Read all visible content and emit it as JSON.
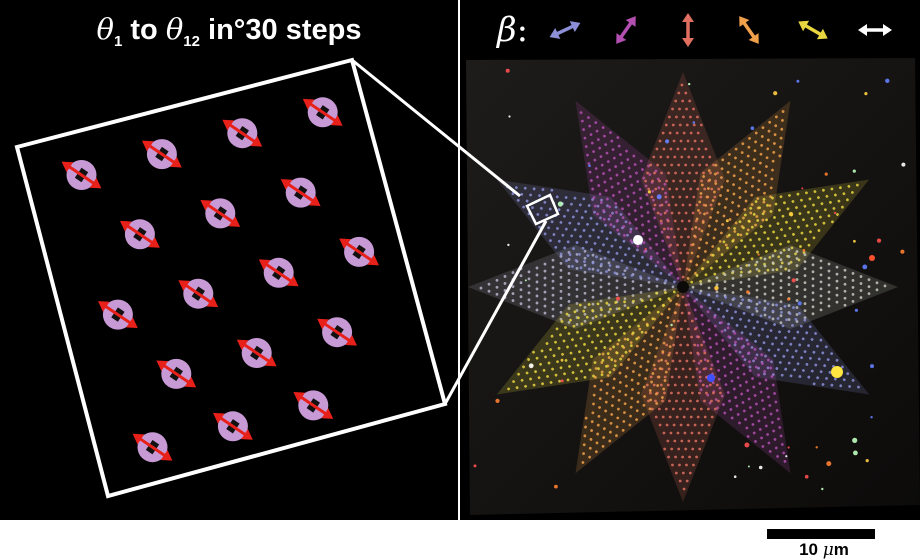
{
  "title": {
    "symbol": "θ",
    "start_sub": "1",
    "to_word": "to",
    "end_sub": "12",
    "tail": "in°30 steps"
  },
  "legend": {
    "symbol": "β",
    "colon": ":",
    "arrows": [
      {
        "icon": "double-arrow-icon",
        "color": "#8c8fd8",
        "angle_deg": -25
      },
      {
        "icon": "double-arrow-icon",
        "color": "#b24fb0",
        "angle_deg": -55
      },
      {
        "icon": "double-arrow-icon",
        "color": "#e06f60",
        "angle_deg": -90
      },
      {
        "icon": "double-arrow-icon",
        "color": "#f0a04a",
        "angle_deg": -125
      },
      {
        "icon": "double-arrow-icon",
        "color": "#e8d640",
        "angle_deg": -150
      },
      {
        "icon": "double-arrow-icon",
        "color": "#ffffff",
        "angle_deg": -180
      }
    ]
  },
  "inset": {
    "particle_color": "#c79ad6",
    "arrow_color": "#e8201a",
    "particle_count": 17
  },
  "scale_bar": {
    "value": "10",
    "unit_mu": "μ",
    "unit_m": "m"
  }
}
